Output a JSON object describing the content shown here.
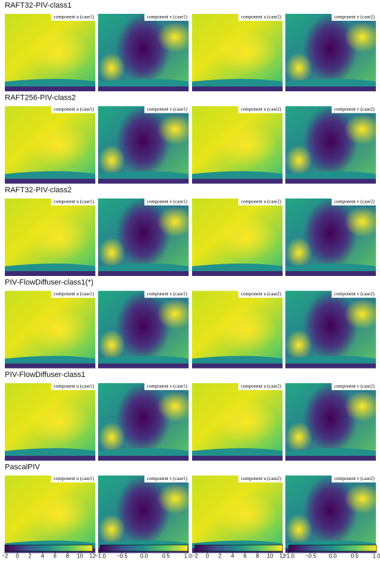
{
  "rows": [
    {
      "title": "RAFT32-PIV-class1",
      "panels": [
        "component u (case1)",
        "component v (case1)",
        "component u (case2)",
        "component v (case2)"
      ]
    },
    {
      "title": "RAFT256-PIV-class2",
      "panels": [
        "component u (case1)",
        "component v (case1)",
        "component u (case2)",
        "component v (case2)"
      ]
    },
    {
      "title": "RAFT32-PIV-class2",
      "panels": [
        "component u (case1)",
        "component v (case1)",
        "component u (case2)",
        "component v (case2)"
      ]
    },
    {
      "title": "PIV-FlowDiffuser-class1(*)",
      "panels": [
        "component u (case1)",
        "component v (case1)",
        "component u (case2)",
        "component v (case2)"
      ]
    },
    {
      "title": "PIV-FlowDiffuser-class1",
      "panels": [
        "component u (case1)",
        "component v (case1)",
        "component u (case2)",
        "component v (case2)"
      ]
    },
    {
      "title": "PascalPIV",
      "panels": [
        "component u (case1)",
        "component v (case1)",
        "component u (case2)",
        "component v (case2)"
      ]
    }
  ],
  "colorbars": [
    {
      "lim": [
        -2,
        12
      ],
      "ticks": [
        {
          "value": -2,
          "label": "−2"
        },
        0,
        2,
        4,
        6,
        8,
        10,
        12
      ]
    },
    {
      "lim": [
        -1,
        1
      ],
      "ticks": [
        {
          "value": -1,
          "label": "−1.0"
        },
        {
          "value": -0.5,
          "label": "−0.5"
        },
        {
          "value": 0,
          "label": "0.0"
        },
        0.5,
        {
          "value": 1,
          "label": "1.0"
        }
      ]
    },
    {
      "lim": [
        -2,
        12
      ],
      "ticks": [
        {
          "value": -2,
          "label": "−2"
        },
        0,
        2,
        4,
        6,
        8,
        10,
        12
      ]
    },
    {
      "lim": [
        -1,
        1
      ],
      "ticks": [
        {
          "value": -1,
          "label": "−1.0"
        },
        {
          "value": -0.5,
          "label": "−0.5"
        },
        {
          "value": 0,
          "label": "0.0"
        },
        0.5,
        {
          "value": 1,
          "label": "1.0"
        }
      ]
    }
  ]
}
